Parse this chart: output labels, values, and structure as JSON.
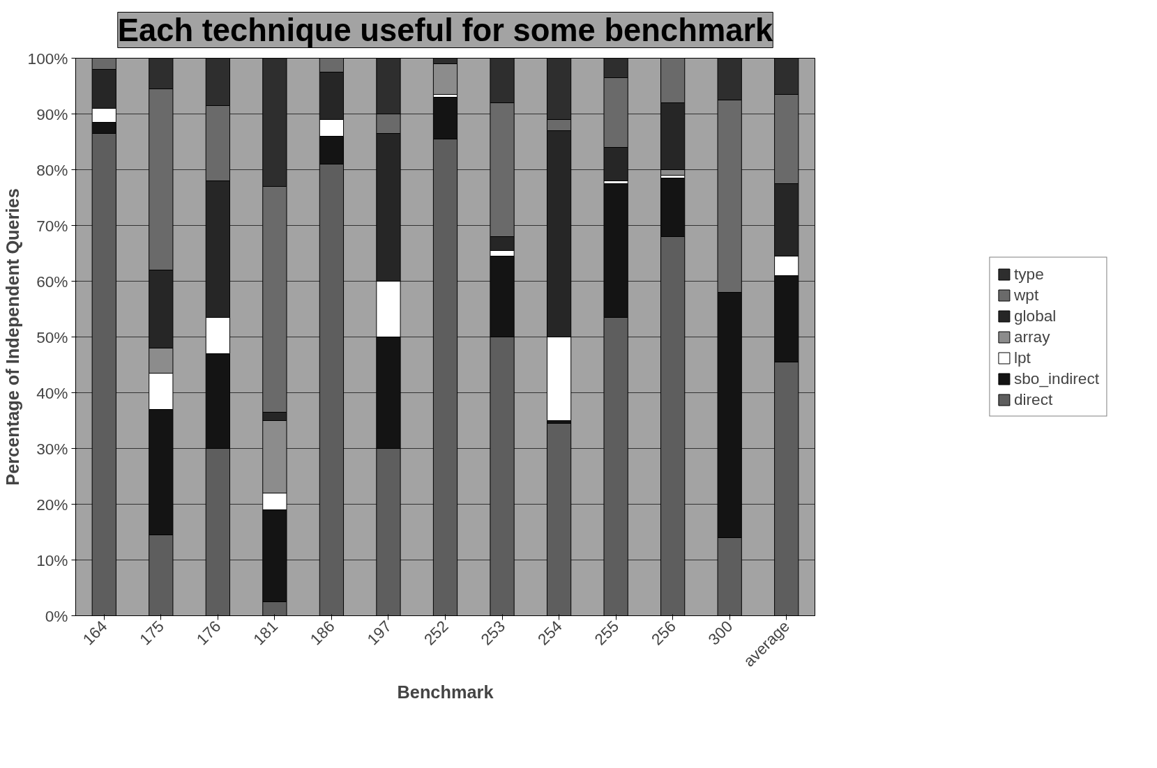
{
  "chart_data": {
    "type": "bar",
    "stacked": true,
    "xlabel": "Benchmark",
    "ylabel": "Percentage of Independent Queries",
    "categories": [
      "164",
      "175",
      "176",
      "181",
      "186",
      "197",
      "252",
      "253",
      "254",
      "255",
      "256",
      "300",
      "average"
    ],
    "series": [
      {
        "name": "direct",
        "color": "#5e5e5e",
        "values": [
          86.5,
          14.5,
          30,
          2.5,
          81,
          30,
          85.5,
          50,
          34.5,
          53.5,
          68,
          14,
          45.5
        ]
      },
      {
        "name": "sbo_indirect",
        "color": "#141414",
        "values": [
          2,
          22.5,
          17,
          16.5,
          5,
          20,
          7.5,
          14.5,
          0.5,
          24,
          10.5,
          44,
          15.5
        ]
      },
      {
        "name": "lpt",
        "color": "#ffffff",
        "values": [
          2.5,
          6.5,
          6.5,
          3,
          3,
          10,
          0.5,
          1,
          15,
          0.5,
          0.5,
          0,
          3.5
        ]
      },
      {
        "name": "array",
        "color": "#8c8c8c",
        "values": [
          0,
          4.5,
          0,
          13,
          0,
          0,
          5.5,
          0,
          0,
          0,
          1,
          0,
          0
        ]
      },
      {
        "name": "global",
        "color": "#262626",
        "values": [
          7,
          14,
          24.5,
          1.5,
          8.5,
          26.5,
          0,
          2.5,
          37,
          6,
          12,
          0,
          13
        ]
      },
      {
        "name": "wpt",
        "color": "#6a6a6a",
        "values": [
          2,
          32.5,
          13.5,
          40.5,
          2.5,
          3.5,
          0,
          24,
          2,
          12.5,
          8,
          34.5,
          16
        ]
      },
      {
        "name": "type",
        "color": "#2e2e2e",
        "values": [
          0,
          5.5,
          8.5,
          23,
          0,
          10,
          1,
          8,
          11,
          3.5,
          0,
          7.5,
          6.5
        ]
      }
    ],
    "ylim": [
      0,
      100
    ],
    "yticks": [
      {
        "value": 0,
        "label": "0%"
      },
      {
        "value": 10,
        "label": "10%"
      },
      {
        "value": 20,
        "label": "20%"
      },
      {
        "value": 30,
        "label": "30%"
      },
      {
        "value": 40,
        "label": "40%"
      },
      {
        "value": 50,
        "label": "50%"
      },
      {
        "value": 60,
        "label": "60%"
      },
      {
        "value": 70,
        "label": "70%"
      },
      {
        "value": 80,
        "label": "80%"
      },
      {
        "value": 90,
        "label": "90%"
      },
      {
        "value": 100,
        "label": "100%"
      }
    ],
    "grid": "y",
    "legend": "right",
    "annotations": [
      "Each technique useful for some benchmark"
    ]
  }
}
